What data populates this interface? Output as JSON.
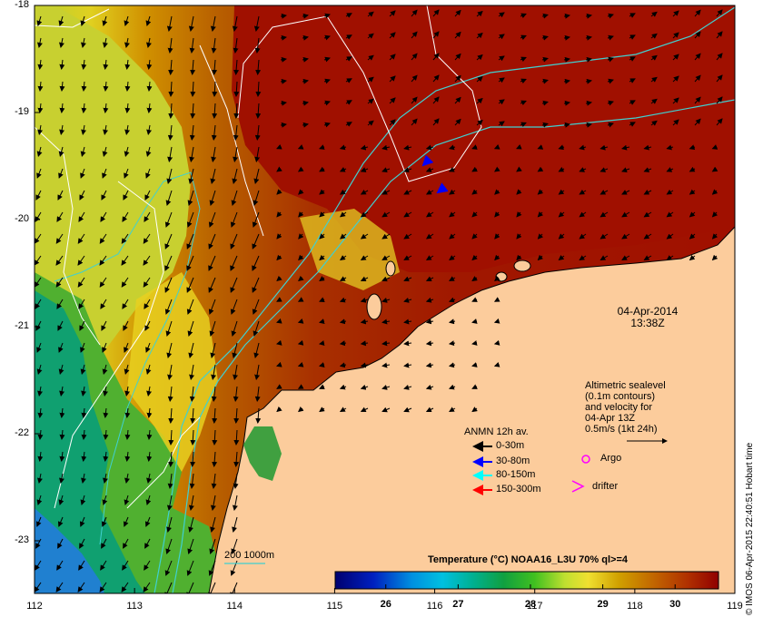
{
  "map": {
    "longitude_ticks": [
      "112",
      "113",
      "114",
      "115",
      "116",
      "117",
      "118",
      "119"
    ],
    "latitude_ticks": [
      "-18",
      "-19",
      "-20",
      "-21",
      "-22",
      "-23"
    ],
    "date": "04-Apr-2014",
    "time": "13:38Z",
    "colors": {
      "land": "#fccc9c",
      "warm_sea": "#a01000",
      "sealevel_contour": "#ffffff",
      "isobath": "#40d0d0",
      "velocity_arrow": "#000000"
    }
  },
  "sealevel_note": {
    "lines": [
      "Altimetric sealevel",
      "(0.1m contours)",
      "and velocity for",
      "04-Apr 13Z",
      "0.5m/s (1kt 24h)"
    ]
  },
  "anmn_legend": {
    "title": "ANMN 12h av.",
    "items": [
      {
        "label": "0-30m",
        "color": "#000000"
      },
      {
        "label": "30-80m",
        "color": "#0000ff"
      },
      {
        "label": "80-150m",
        "color": "#00ffff"
      },
      {
        "label": "150-300m",
        "color": "#ff0000"
      }
    ]
  },
  "argo": {
    "label": "Argo",
    "color": "#ff00ff"
  },
  "drifter": {
    "label": "drifter",
    "color": "#ff00ff"
  },
  "depth_legend": {
    "label": "200  1000m"
  },
  "colorbar": {
    "title": "Temperature (°C) NOAA16_L3U 70% ql>=4",
    "ticks": [
      "26",
      "27",
      "28",
      "29",
      "30"
    ],
    "range": [
      25.3,
      30.6
    ]
  },
  "credit": "© IMOS 06-Apr-2015 22:40:51 Hobart time"
}
